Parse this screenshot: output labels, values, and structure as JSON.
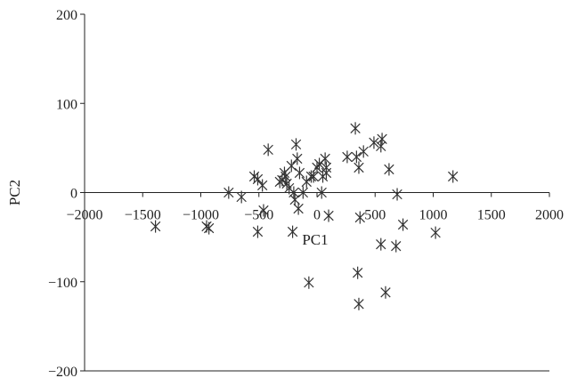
{
  "chart_data": {
    "type": "scatter",
    "title": "",
    "xlabel": "PC1",
    "ylabel": "PC2",
    "xlim": [
      -2000,
      2000
    ],
    "ylim": [
      -200,
      200
    ],
    "x_ticks": [
      -2000,
      -1500,
      -1000,
      -500,
      0,
      500,
      1000,
      1500,
      2000
    ],
    "y_ticks": [
      -200,
      -100,
      0,
      100,
      200
    ],
    "x_tick_labels": [
      "−2000",
      "−1500",
      "−1000",
      "−500",
      "0",
      "500",
      "1000",
      "1500",
      "2000"
    ],
    "y_tick_labels": [
      "−200",
      "−100",
      "0",
      "100",
      "200"
    ],
    "grid": false,
    "marker": "asterisk",
    "marker_color": "#333333",
    "series": [
      {
        "points": [
          [
            -1390,
            -38
          ],
          [
            -950,
            -38
          ],
          [
            -930,
            -40
          ],
          [
            -760,
            0
          ],
          [
            -650,
            -5
          ],
          [
            -540,
            18
          ],
          [
            -510,
            15
          ],
          [
            -510,
            -44
          ],
          [
            -470,
            8
          ],
          [
            -460,
            -20
          ],
          [
            -420,
            48
          ],
          [
            -320,
            12
          ],
          [
            -300,
            14
          ],
          [
            -280,
            22
          ],
          [
            -270,
            18
          ],
          [
            -260,
            10
          ],
          [
            -240,
            5
          ],
          [
            -220,
            30
          ],
          [
            -210,
            -44
          ],
          [
            -200,
            0
          ],
          [
            -190,
            -8
          ],
          [
            -180,
            54
          ],
          [
            -170,
            38
          ],
          [
            -160,
            -18
          ],
          [
            -150,
            22
          ],
          [
            -120,
            0
          ],
          [
            -90,
            12
          ],
          [
            -70,
            -101
          ],
          [
            -50,
            18
          ],
          [
            -30,
            18
          ],
          [
            0,
            28
          ],
          [
            20,
            32
          ],
          [
            40,
            0
          ],
          [
            50,
            18
          ],
          [
            70,
            38
          ],
          [
            80,
            28
          ],
          [
            80,
            22
          ],
          [
            100,
            -26
          ],
          [
            260,
            40
          ],
          [
            330,
            72
          ],
          [
            340,
            40
          ],
          [
            360,
            28
          ],
          [
            370,
            -28
          ],
          [
            350,
            -90
          ],
          [
            360,
            -125
          ],
          [
            400,
            46
          ],
          [
            490,
            56
          ],
          [
            550,
            52
          ],
          [
            560,
            60
          ],
          [
            550,
            -58
          ],
          [
            590,
            -112
          ],
          [
            620,
            26
          ],
          [
            680,
            -60
          ],
          [
            690,
            -2
          ],
          [
            740,
            -36
          ],
          [
            1020,
            -45
          ],
          [
            1170,
            18
          ]
        ]
      }
    ]
  }
}
